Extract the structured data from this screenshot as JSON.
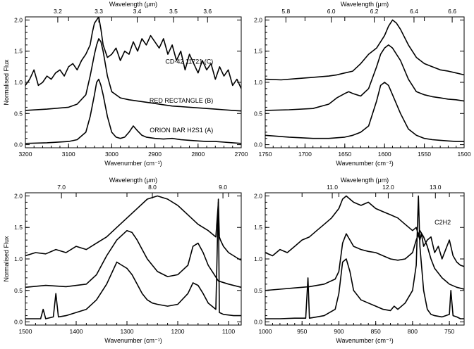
{
  "figure": {
    "panels_label": "Four-panel spectral comparison"
  },
  "chart_data": [
    {
      "type": "line",
      "id": "p1",
      "xlabel": "Wavenumber (cm⁻¹)",
      "ylabel": "Normalised Flux",
      "top_label": "Wavelength (μm)",
      "xlim": [
        3200,
        2700
      ],
      "ylim": [
        -0.05,
        2.05
      ],
      "x_ticks": [
        3200,
        3100,
        3000,
        2900,
        2800,
        2700
      ],
      "y_ticks": [
        "0.0",
        "0.5",
        "1.0",
        "1.5",
        "2.0"
      ],
      "top_ticks": [
        {
          "label": "3.2",
          "x": 3125
        },
        {
          "label": "3.3",
          "x": 3030
        },
        {
          "label": "3.4",
          "x": 2941
        },
        {
          "label": "3.5",
          "x": 2857
        },
        {
          "label": "3.6",
          "x": 2778
        }
      ],
      "annotations": [
        {
          "text": "CD-42 11721 (C)",
          "x": 2765,
          "y": 1.3
        },
        {
          "text": "RED RECTANGLE (B)",
          "x": 2765,
          "y": 0.67
        },
        {
          "text": "ORION BAR H2S1 (A)",
          "x": 2765,
          "y": 0.2
        }
      ],
      "series": [
        {
          "x": [
            3200,
            3190,
            3180,
            3170,
            3160,
            3150,
            3140,
            3130,
            3120,
            3110,
            3100,
            3090,
            3080,
            3070,
            3060,
            3050,
            3045,
            3040,
            3035,
            3030,
            3025,
            3020,
            3010,
            3000,
            2990,
            2980,
            2970,
            2960,
            2950,
            2940,
            2930,
            2920,
            2910,
            2900,
            2890,
            2880,
            2870,
            2860,
            2850,
            2840,
            2830,
            2820,
            2810,
            2800,
            2790,
            2780,
            2770,
            2760,
            2750,
            2740,
            2730,
            2720,
            2710,
            2700
          ],
          "values": [
            0.95,
            1.05,
            1.2,
            0.95,
            1.0,
            1.1,
            1.05,
            1.15,
            1.2,
            1.1,
            1.25,
            1.3,
            1.2,
            1.35,
            1.45,
            1.6,
            1.8,
            1.95,
            2.0,
            2.05,
            1.85,
            1.6,
            1.4,
            1.45,
            1.55,
            1.35,
            1.5,
            1.45,
            1.65,
            1.5,
            1.7,
            1.6,
            1.75,
            1.65,
            1.55,
            1.7,
            1.45,
            1.6,
            1.35,
            1.5,
            1.2,
            1.45,
            1.3,
            1.15,
            1.35,
            1.2,
            1.3,
            1.05,
            1.25,
            1.1,
            1.2,
            0.95,
            1.05,
            0.9
          ]
        },
        {
          "x": [
            3200,
            3150,
            3100,
            3080,
            3060,
            3050,
            3040,
            3035,
            3030,
            3025,
            3020,
            3010,
            3000,
            2980,
            2960,
            2940,
            2920,
            2900,
            2880,
            2860,
            2840,
            2820,
            2800,
            2780,
            2760,
            2740,
            2720,
            2700
          ],
          "values": [
            0.55,
            0.57,
            0.6,
            0.65,
            0.8,
            1.1,
            1.45,
            1.6,
            1.7,
            1.65,
            1.5,
            1.1,
            0.85,
            0.75,
            0.72,
            0.7,
            0.68,
            0.66,
            0.64,
            0.62,
            0.61,
            0.6,
            0.59,
            0.58,
            0.57,
            0.56,
            0.55,
            0.54
          ]
        },
        {
          "x": [
            3200,
            3150,
            3100,
            3080,
            3060,
            3050,
            3040,
            3035,
            3030,
            3025,
            3020,
            3010,
            3000,
            2990,
            2980,
            2970,
            2960,
            2950,
            2940,
            2930,
            2920,
            2900,
            2880,
            2860,
            2840,
            2820,
            2800,
            2780,
            2760,
            2740,
            2720,
            2700
          ],
          "values": [
            0.02,
            0.03,
            0.05,
            0.08,
            0.2,
            0.45,
            0.8,
            1.0,
            1.05,
            0.95,
            0.8,
            0.45,
            0.2,
            0.12,
            0.1,
            0.12,
            0.2,
            0.3,
            0.22,
            0.15,
            0.12,
            0.1,
            0.09,
            0.1,
            0.08,
            0.07,
            0.06,
            0.05,
            0.05,
            0.04,
            0.03,
            0.02
          ]
        }
      ]
    },
    {
      "type": "line",
      "id": "p2",
      "xlabel": "Wavenumber (cm⁻¹)",
      "ylabel": "",
      "top_label": "Wavelength (μm)",
      "xlim": [
        1750,
        1500
      ],
      "ylim": [
        -0.05,
        2.05
      ],
      "x_ticks": [
        1750,
        1700,
        1650,
        1600,
        1550,
        1500
      ],
      "y_ticks": [
        "0.0",
        "0.5",
        "1.0",
        "1.5",
        "2.0"
      ],
      "top_ticks": [
        {
          "label": "5.8",
          "x": 1724
        },
        {
          "label": "6.0",
          "x": 1667
        },
        {
          "label": "6.2",
          "x": 1613
        },
        {
          "label": "6.4",
          "x": 1563
        },
        {
          "label": "6.6",
          "x": 1515
        }
      ],
      "annotations": [],
      "series": [
        {
          "x": [
            1750,
            1730,
            1710,
            1690,
            1670,
            1660,
            1650,
            1640,
            1630,
            1620,
            1610,
            1600,
            1595,
            1590,
            1585,
            1580,
            1570,
            1560,
            1550,
            1540,
            1530,
            1520,
            1510,
            1500
          ],
          "values": [
            1.05,
            1.04,
            1.06,
            1.08,
            1.1,
            1.12,
            1.15,
            1.18,
            1.3,
            1.45,
            1.55,
            1.75,
            1.9,
            2.0,
            1.95,
            1.85,
            1.6,
            1.4,
            1.3,
            1.25,
            1.2,
            1.18,
            1.15,
            1.12
          ]
        },
        {
          "x": [
            1750,
            1720,
            1690,
            1670,
            1660,
            1650,
            1645,
            1640,
            1630,
            1620,
            1610,
            1605,
            1600,
            1595,
            1590,
            1580,
            1570,
            1560,
            1550,
            1540,
            1530,
            1520,
            1510,
            1500
          ],
          "values": [
            0.55,
            0.56,
            0.58,
            0.65,
            0.75,
            0.82,
            0.85,
            0.82,
            0.78,
            0.9,
            1.25,
            1.45,
            1.55,
            1.6,
            1.55,
            1.35,
            1.05,
            0.85,
            0.8,
            0.77,
            0.75,
            0.73,
            0.72,
            0.7
          ]
        },
        {
          "x": [
            1750,
            1720,
            1690,
            1670,
            1650,
            1640,
            1630,
            1620,
            1610,
            1605,
            1600,
            1595,
            1590,
            1580,
            1570,
            1560,
            1550,
            1540,
            1530,
            1520,
            1510,
            1500
          ],
          "values": [
            0.15,
            0.12,
            0.1,
            0.1,
            0.12,
            0.15,
            0.2,
            0.3,
            0.7,
            0.95,
            1.0,
            0.95,
            0.8,
            0.5,
            0.25,
            0.15,
            0.1,
            0.08,
            0.07,
            0.06,
            0.05,
            0.05
          ]
        }
      ]
    },
    {
      "type": "line",
      "id": "p3",
      "xlabel": "Wavenumber (cm⁻¹)",
      "ylabel": "Normalised Flux",
      "top_label": "Wavelength (μm)",
      "xlim": [
        1500,
        1075
      ],
      "ylim": [
        -0.05,
        2.05
      ],
      "x_ticks": [
        1500,
        1400,
        1300,
        1200,
        1100
      ],
      "y_ticks": [
        "0.0",
        "0.5",
        "1.0",
        "1.5",
        "2.0"
      ],
      "top_ticks": [
        {
          "label": "7.0",
          "x": 1429
        },
        {
          "label": "8.0",
          "x": 1250
        },
        {
          "label": "9.0",
          "x": 1111
        }
      ],
      "annotations": [],
      "series": [
        {
          "x": [
            1500,
            1480,
            1460,
            1440,
            1420,
            1400,
            1380,
            1360,
            1340,
            1320,
            1300,
            1280,
            1260,
            1240,
            1220,
            1200,
            1180,
            1160,
            1140,
            1125,
            1120,
            1118,
            1116,
            1110,
            1100,
            1090,
            1080,
            1075
          ],
          "values": [
            1.05,
            1.1,
            1.08,
            1.15,
            1.1,
            1.2,
            1.15,
            1.25,
            1.35,
            1.5,
            1.65,
            1.8,
            1.95,
            2.0,
            1.95,
            1.85,
            1.7,
            1.55,
            1.45,
            1.35,
            1.9,
            1.35,
            1.3,
            1.2,
            1.1,
            1.05,
            1.0,
            0.98
          ]
        },
        {
          "x": [
            1500,
            1460,
            1420,
            1380,
            1360,
            1340,
            1320,
            1300,
            1290,
            1280,
            1270,
            1260,
            1240,
            1220,
            1200,
            1180,
            1170,
            1160,
            1150,
            1140,
            1120,
            1100,
            1075
          ],
          "values": [
            0.55,
            0.58,
            0.56,
            0.6,
            0.75,
            1.05,
            1.3,
            1.45,
            1.42,
            1.3,
            1.15,
            1.0,
            0.8,
            0.72,
            0.75,
            0.9,
            1.2,
            1.25,
            1.1,
            0.9,
            0.65,
            0.6,
            0.55
          ]
        },
        {
          "x": [
            1500,
            1470,
            1465,
            1460,
            1445,
            1440,
            1435,
            1420,
            1400,
            1380,
            1360,
            1340,
            1320,
            1310,
            1300,
            1290,
            1280,
            1270,
            1260,
            1250,
            1240,
            1220,
            1200,
            1180,
            1170,
            1160,
            1150,
            1140,
            1125,
            1120,
            1118,
            1110,
            1090,
            1075
          ],
          "values": [
            0.05,
            0.05,
            0.2,
            0.05,
            0.08,
            0.45,
            0.08,
            0.1,
            0.15,
            0.2,
            0.35,
            0.6,
            0.95,
            0.9,
            0.85,
            0.75,
            0.6,
            0.45,
            0.35,
            0.3,
            0.28,
            0.25,
            0.28,
            0.45,
            0.62,
            0.58,
            0.45,
            0.3,
            0.2,
            1.95,
            0.15,
            0.12,
            0.1,
            0.1
          ]
        }
      ]
    },
    {
      "type": "line",
      "id": "p4",
      "xlabel": "Wavenumber (cm⁻¹)",
      "ylabel": "",
      "top_label": "Wavelength (μm)",
      "xlim": [
        1000,
        730
      ],
      "ylim": [
        -0.05,
        2.05
      ],
      "x_ticks": [
        1000,
        950,
        900,
        850,
        800,
        750
      ],
      "y_ticks": [
        "0.0",
        "0.5",
        "1.0",
        "1.5",
        "2.0"
      ],
      "top_ticks": [
        {
          "label": "11.0",
          "x": 909
        },
        {
          "label": "12.0",
          "x": 833
        },
        {
          "label": "13.0",
          "x": 769
        }
      ],
      "annotations": [
        {
          "text": "C2H2",
          "x": 748,
          "y": 1.55
        }
      ],
      "series": [
        {
          "x": [
            1000,
            990,
            980,
            970,
            960,
            950,
            940,
            930,
            920,
            910,
            900,
            895,
            890,
            885,
            880,
            870,
            860,
            850,
            840,
            830,
            820,
            810,
            800,
            795,
            790,
            788,
            785,
            780,
            775,
            770,
            765,
            760,
            755,
            750,
            745,
            740,
            735,
            730
          ],
          "values": [
            1.1,
            1.05,
            1.15,
            1.1,
            1.2,
            1.3,
            1.35,
            1.45,
            1.55,
            1.65,
            1.8,
            1.95,
            2.0,
            1.95,
            1.9,
            1.85,
            1.9,
            1.8,
            1.75,
            1.7,
            1.65,
            1.55,
            1.45,
            1.5,
            1.3,
            1.4,
            1.2,
            1.3,
            1.35,
            1.1,
            1.2,
            1.0,
            1.15,
            1.3,
            1.05,
            0.95,
            0.9,
            0.88
          ]
        },
        {
          "x": [
            1000,
            980,
            960,
            940,
            920,
            905,
            900,
            895,
            890,
            885,
            880,
            870,
            860,
            850,
            840,
            830,
            820,
            810,
            800,
            795,
            790,
            785,
            780,
            775,
            770,
            760,
            750,
            740,
            730
          ],
          "values": [
            0.5,
            0.52,
            0.54,
            0.56,
            0.6,
            0.68,
            0.8,
            1.25,
            1.4,
            1.3,
            1.2,
            1.15,
            1.12,
            1.1,
            1.05,
            1.0,
            0.98,
            1.0,
            1.1,
            1.3,
            1.45,
            1.35,
            1.2,
            1.0,
            0.85,
            0.7,
            0.6,
            0.55,
            0.52
          ]
        },
        {
          "x": [
            1000,
            980,
            960,
            945,
            942,
            940,
            930,
            920,
            905,
            900,
            895,
            890,
            885,
            880,
            870,
            860,
            850,
            840,
            830,
            825,
            820,
            810,
            800,
            795,
            792,
            790,
            785,
            780,
            775,
            770,
            760,
            755,
            750,
            748,
            745,
            740,
            735,
            730
          ],
          "values": [
            0.05,
            0.05,
            0.06,
            0.06,
            0.7,
            0.06,
            0.08,
            0.1,
            0.2,
            0.45,
            0.95,
            1.0,
            0.8,
            0.5,
            0.35,
            0.3,
            0.25,
            0.2,
            0.18,
            0.25,
            0.2,
            0.3,
            0.5,
            0.9,
            2.0,
            1.2,
            0.5,
            0.2,
            0.12,
            0.1,
            0.08,
            0.1,
            0.12,
            0.5,
            0.1,
            0.08,
            0.05,
            0.05
          ]
        }
      ]
    }
  ]
}
